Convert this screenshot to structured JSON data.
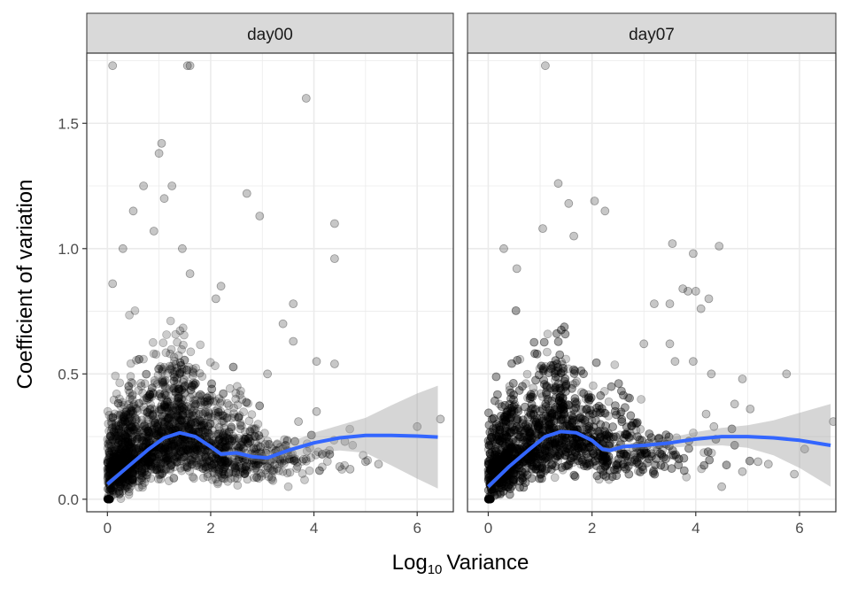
{
  "chart_data": {
    "type": "scatter",
    "facets": [
      "day00",
      "day07"
    ],
    "xlabel": "Variance",
    "xlabel_prefix": "Log",
    "xlabel_subscript": "10",
    "ylabel": "Coefficient of variation",
    "xlim": [
      -0.4,
      6.7
    ],
    "ylim": [
      -0.05,
      1.78
    ],
    "x_ticks": [
      0,
      2,
      4,
      6
    ],
    "x_tick_labels": [
      "0",
      "2",
      "4",
      "6"
    ],
    "y_ticks": [
      0.0,
      0.5,
      1.0,
      1.5
    ],
    "y_tick_labels": [
      "0.0",
      "0.5",
      "1.0",
      "1.5"
    ],
    "grid": true,
    "panels": [
      {
        "name": "day00",
        "smooth": {
          "x": [
            0,
            0.4,
            0.8,
            1.1,
            1.4,
            1.7,
            2.0,
            2.2,
            2.5,
            2.8,
            3.1,
            3.5,
            4.0,
            4.5,
            5.0,
            5.5,
            6.0,
            6.4
          ],
          "y": [
            0.06,
            0.13,
            0.2,
            0.245,
            0.265,
            0.25,
            0.21,
            0.18,
            0.185,
            0.17,
            0.165,
            0.195,
            0.225,
            0.245,
            0.255,
            0.255,
            0.252,
            0.248
          ]
        },
        "band_halfwidth": [
          0.012,
          0.008,
          0.006,
          0.006,
          0.006,
          0.006,
          0.008,
          0.01,
          0.012,
          0.015,
          0.02,
          0.03,
          0.04,
          0.05,
          0.07,
          0.12,
          0.17,
          0.205
        ],
        "outliers": [
          [
            0.1,
            1.73
          ],
          [
            1.55,
            1.73
          ],
          [
            1.6,
            1.73
          ],
          [
            3.85,
            1.6
          ],
          [
            1.05,
            1.42
          ],
          [
            1.0,
            1.38
          ],
          [
            0.7,
            1.25
          ],
          [
            1.25,
            1.25
          ],
          [
            2.7,
            1.22
          ],
          [
            0.5,
            1.15
          ],
          [
            1.1,
            1.2
          ],
          [
            2.95,
            1.13
          ],
          [
            4.4,
            1.1
          ],
          [
            0.3,
            1.0
          ],
          [
            0.9,
            1.07
          ],
          [
            1.45,
            1.0
          ],
          [
            4.4,
            0.96
          ],
          [
            1.6,
            0.9
          ],
          [
            0.1,
            0.86
          ],
          [
            2.1,
            0.8
          ],
          [
            2.2,
            0.85
          ],
          [
            3.6,
            0.78
          ],
          [
            3.4,
            0.7
          ],
          [
            3.6,
            0.63
          ],
          [
            4.05,
            0.55
          ],
          [
            4.4,
            0.54
          ],
          [
            3.1,
            0.5
          ],
          [
            4.05,
            0.35
          ],
          [
            3.7,
            0.31
          ],
          [
            4.6,
            0.23
          ],
          [
            6.45,
            0.32
          ],
          [
            6.0,
            0.29
          ],
          [
            5.0,
            0.15
          ],
          [
            5.25,
            0.14
          ],
          [
            4.5,
            0.13
          ],
          [
            4.7,
            0.12
          ],
          [
            3.8,
            0.16
          ]
        ]
      },
      {
        "name": "day07",
        "smooth": {
          "x": [
            0,
            0.4,
            0.8,
            1.1,
            1.4,
            1.7,
            2.0,
            2.2,
            2.35,
            2.6,
            3.0,
            3.5,
            4.0,
            4.5,
            5.0,
            5.5,
            6.0,
            6.6
          ],
          "y": [
            0.05,
            0.13,
            0.2,
            0.25,
            0.27,
            0.265,
            0.235,
            0.2,
            0.195,
            0.21,
            0.215,
            0.225,
            0.24,
            0.25,
            0.25,
            0.245,
            0.235,
            0.215
          ]
        },
        "band_halfwidth": [
          0.012,
          0.008,
          0.006,
          0.006,
          0.006,
          0.006,
          0.008,
          0.01,
          0.01,
          0.012,
          0.015,
          0.02,
          0.028,
          0.035,
          0.045,
          0.07,
          0.11,
          0.165
        ],
        "outliers": [
          [
            1.1,
            1.73
          ],
          [
            1.35,
            1.26
          ],
          [
            1.55,
            1.18
          ],
          [
            1.05,
            1.08
          ],
          [
            2.05,
            1.19
          ],
          [
            1.65,
            1.05
          ],
          [
            3.55,
            1.02
          ],
          [
            4.45,
            1.01
          ],
          [
            2.25,
            1.15
          ],
          [
            0.55,
            0.92
          ],
          [
            0.3,
            1.0
          ],
          [
            3.95,
            0.98
          ],
          [
            3.75,
            0.84
          ],
          [
            3.85,
            0.83
          ],
          [
            4.0,
            0.83
          ],
          [
            4.25,
            0.8
          ],
          [
            3.2,
            0.78
          ],
          [
            3.5,
            0.78
          ],
          [
            3.0,
            0.62
          ],
          [
            4.1,
            0.76
          ],
          [
            3.5,
            0.62
          ],
          [
            3.95,
            0.55
          ],
          [
            3.6,
            0.55
          ],
          [
            4.3,
            0.5
          ],
          [
            4.9,
            0.48
          ],
          [
            5.75,
            0.5
          ],
          [
            5.05,
            0.36
          ],
          [
            4.75,
            0.38
          ],
          [
            4.2,
            0.34
          ],
          [
            4.35,
            0.29
          ],
          [
            6.65,
            0.31
          ],
          [
            6.1,
            0.2
          ],
          [
            5.2,
            0.15
          ],
          [
            5.4,
            0.14
          ],
          [
            4.9,
            0.11
          ],
          [
            4.5,
            0.05
          ],
          [
            5.9,
            0.1
          ]
        ]
      }
    ]
  }
}
